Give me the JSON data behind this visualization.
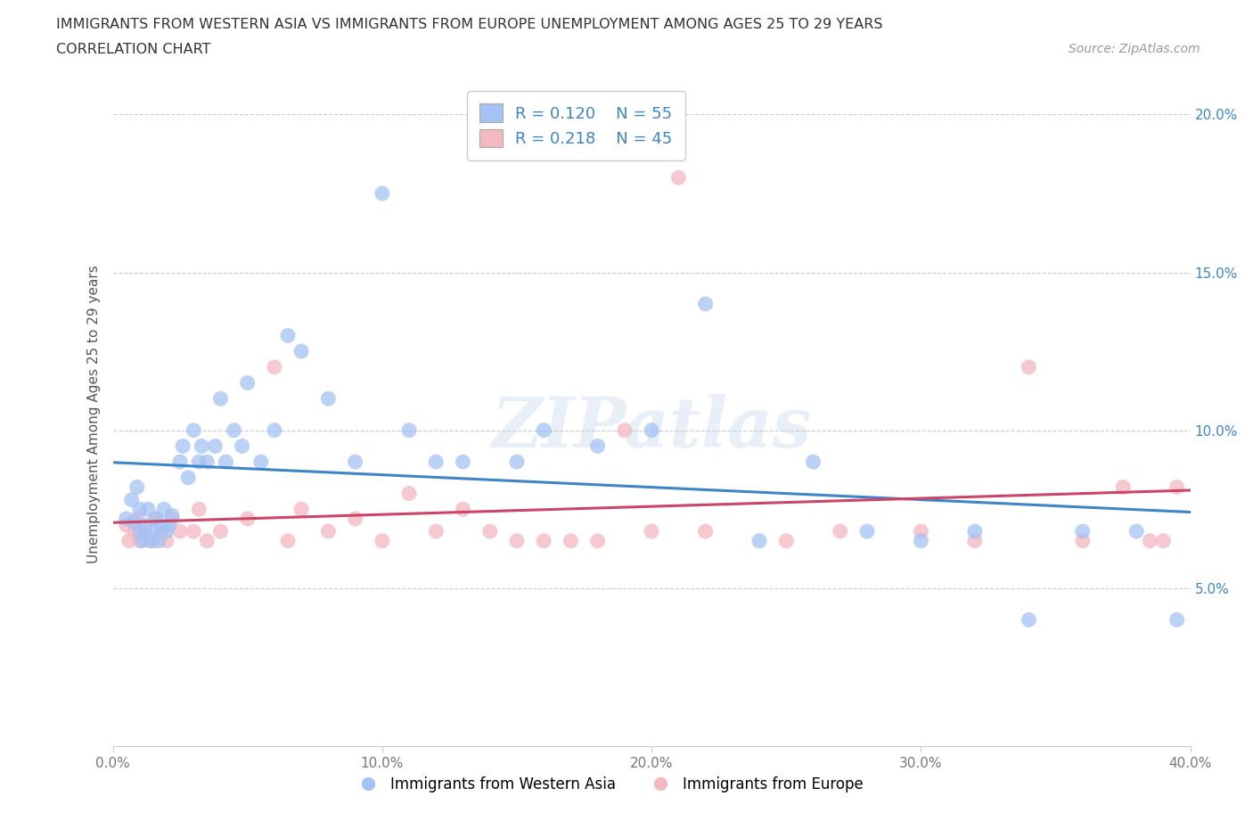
{
  "title_line1": "IMMIGRANTS FROM WESTERN ASIA VS IMMIGRANTS FROM EUROPE UNEMPLOYMENT AMONG AGES 25 TO 29 YEARS",
  "title_line2": "CORRELATION CHART",
  "source_text": "Source: ZipAtlas.com",
  "ylabel": "Unemployment Among Ages 25 to 29 years",
  "xlim": [
    0.0,
    0.4
  ],
  "ylim": [
    0.0,
    0.21
  ],
  "ytick_vals": [
    0.05,
    0.1,
    0.15,
    0.2
  ],
  "ytick_labels": [
    "5.0%",
    "10.0%",
    "15.0%",
    "20.0%"
  ],
  "xtick_vals": [
    0.0,
    0.1,
    0.2,
    0.3,
    0.4
  ],
  "xtick_labels": [
    "0.0%",
    "10.0%",
    "20.0%",
    "30.0%",
    "40.0%"
  ],
  "blue_fill": "#a4c2f4",
  "pink_fill": "#f4b8c1",
  "blue_line_color": "#3d85c8",
  "pink_line_color": "#cc4466",
  "legend_label1": "Immigrants from Western Asia",
  "legend_label2": "Immigrants from Europe",
  "legend_R1": "R = 0.120",
  "legend_N1": "N = 55",
  "legend_R2": "R = 0.218",
  "legend_N2": "N = 45",
  "watermark": "ZIPatlas",
  "blue_x": [
    0.005,
    0.007,
    0.008,
    0.009,
    0.01,
    0.01,
    0.011,
    0.012,
    0.013,
    0.014,
    0.015,
    0.016,
    0.017,
    0.018,
    0.019,
    0.02,
    0.021,
    0.022,
    0.025,
    0.026,
    0.028,
    0.03,
    0.032,
    0.033,
    0.035,
    0.038,
    0.04,
    0.042,
    0.045,
    0.048,
    0.05,
    0.055,
    0.06,
    0.065,
    0.07,
    0.08,
    0.09,
    0.1,
    0.11,
    0.12,
    0.13,
    0.15,
    0.16,
    0.18,
    0.2,
    0.22,
    0.24,
    0.26,
    0.28,
    0.3,
    0.32,
    0.34,
    0.36,
    0.38,
    0.395
  ],
  "blue_y": [
    0.072,
    0.078,
    0.071,
    0.082,
    0.075,
    0.068,
    0.065,
    0.07,
    0.075,
    0.065,
    0.068,
    0.072,
    0.065,
    0.07,
    0.075,
    0.068,
    0.07,
    0.073,
    0.09,
    0.095,
    0.085,
    0.1,
    0.09,
    0.095,
    0.09,
    0.095,
    0.11,
    0.09,
    0.1,
    0.095,
    0.115,
    0.09,
    0.1,
    0.13,
    0.125,
    0.11,
    0.09,
    0.175,
    0.1,
    0.09,
    0.09,
    0.09,
    0.1,
    0.095,
    0.1,
    0.14,
    0.065,
    0.09,
    0.068,
    0.065,
    0.068,
    0.04,
    0.068,
    0.068,
    0.04
  ],
  "pink_x": [
    0.005,
    0.006,
    0.008,
    0.009,
    0.01,
    0.012,
    0.015,
    0.016,
    0.018,
    0.02,
    0.022,
    0.025,
    0.03,
    0.032,
    0.035,
    0.04,
    0.05,
    0.06,
    0.065,
    0.07,
    0.08,
    0.09,
    0.1,
    0.11,
    0.12,
    0.13,
    0.14,
    0.15,
    0.16,
    0.17,
    0.18,
    0.19,
    0.2,
    0.21,
    0.22,
    0.25,
    0.27,
    0.3,
    0.32,
    0.34,
    0.36,
    0.375,
    0.385,
    0.39,
    0.395
  ],
  "pink_y": [
    0.07,
    0.065,
    0.068,
    0.072,
    0.065,
    0.068,
    0.065,
    0.072,
    0.068,
    0.065,
    0.072,
    0.068,
    0.068,
    0.075,
    0.065,
    0.068,
    0.072,
    0.12,
    0.065,
    0.075,
    0.068,
    0.072,
    0.065,
    0.08,
    0.068,
    0.075,
    0.068,
    0.065,
    0.065,
    0.065,
    0.065,
    0.1,
    0.068,
    0.18,
    0.068,
    0.065,
    0.068,
    0.068,
    0.065,
    0.12,
    0.065,
    0.082,
    0.065,
    0.065,
    0.082
  ]
}
